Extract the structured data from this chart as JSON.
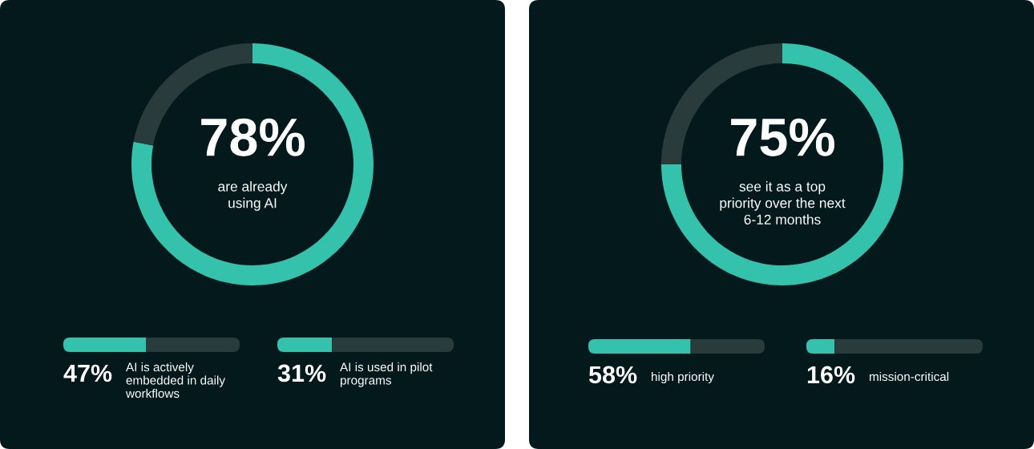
{
  "chart_data": [
    {
      "type": "donut",
      "categories": [
        "are already\nusing AI",
        null
      ],
      "values": [
        78,
        22
      ],
      "value_labels": [
        "78%",
        null
      ],
      "colors": [
        "#35c2ad",
        "#2a3b3c"
      ]
    },
    {
      "type": "bar",
      "orientation": "horizontal",
      "stacked": true,
      "tick_labels": false,
      "categories": [
        "AI is actively\nembedded in daily\nworkflows"
      ],
      "series": [
        {
          "color": "#35c2ad",
          "values": [
            47
          ],
          "value_labels": [
            "47%"
          ]
        },
        {
          "color": "#2a3b3c",
          "values": [
            53
          ]
        }
      ]
    },
    {
      "type": "bar",
      "orientation": "horizontal",
      "stacked": true,
      "tick_labels": false,
      "categories": [
        "AI is used in pilot\nprograms"
      ],
      "series": [
        {
          "color": "#35c2ad",
          "values": [
            31
          ],
          "value_labels": [
            "31%"
          ]
        },
        {
          "color": "#2a3b3c",
          "values": [
            69
          ]
        }
      ]
    },
    {
      "type": "donut",
      "categories": [
        "see it as a top\npriority over the next\n6-12 months",
        null
      ],
      "values": [
        75,
        25
      ],
      "value_labels": [
        "75%",
        null
      ],
      "colors": [
        "#35c2ad",
        "#2a3b3c"
      ]
    },
    {
      "type": "bar",
      "orientation": "horizontal",
      "stacked": true,
      "tick_labels": false,
      "categories": [
        "high priority"
      ],
      "series": [
        {
          "color": "#35c2ad",
          "values": [
            58
          ],
          "value_labels": [
            "58%"
          ]
        },
        {
          "color": "#2a3b3c",
          "values": [
            42
          ]
        }
      ]
    },
    {
      "type": "bar",
      "orientation": "horizontal",
      "stacked": true,
      "tick_labels": false,
      "categories": [
        "mission-critical"
      ],
      "series": [
        {
          "color": "#35c2ad",
          "values": [
            16
          ],
          "value_labels": [
            "16%"
          ]
        },
        {
          "color": "#2a3b3c",
          "values": [
            84
          ]
        }
      ]
    }
  ]
}
